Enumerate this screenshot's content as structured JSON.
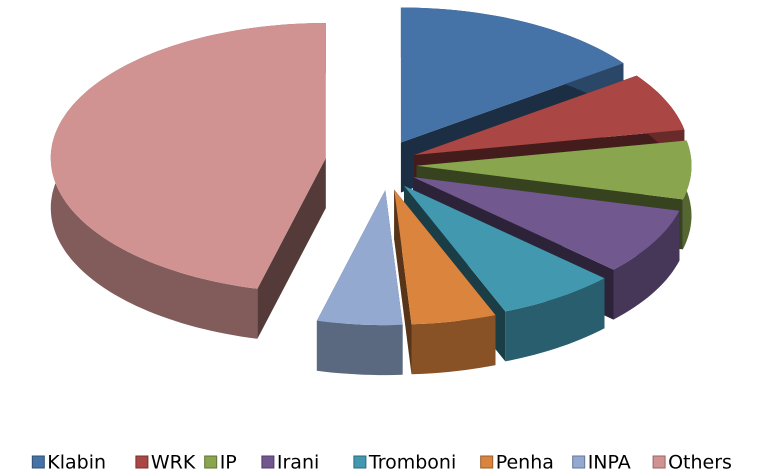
{
  "chart_data": {
    "type": "pie3d",
    "categories": [
      "Klabin",
      "WRK",
      "IP",
      "Irani",
      "Tromboni",
      "Penha",
      "INPA",
      "Others"
    ],
    "values": [
      15,
      7,
      7,
      8,
      7,
      5,
      5,
      46
    ],
    "colors": [
      "#4572a7",
      "#aa4643",
      "#89a54e",
      "#71588f",
      "#4198af",
      "#db843d",
      "#93a9cf",
      "#d19392"
    ],
    "legend": "bottom"
  }
}
